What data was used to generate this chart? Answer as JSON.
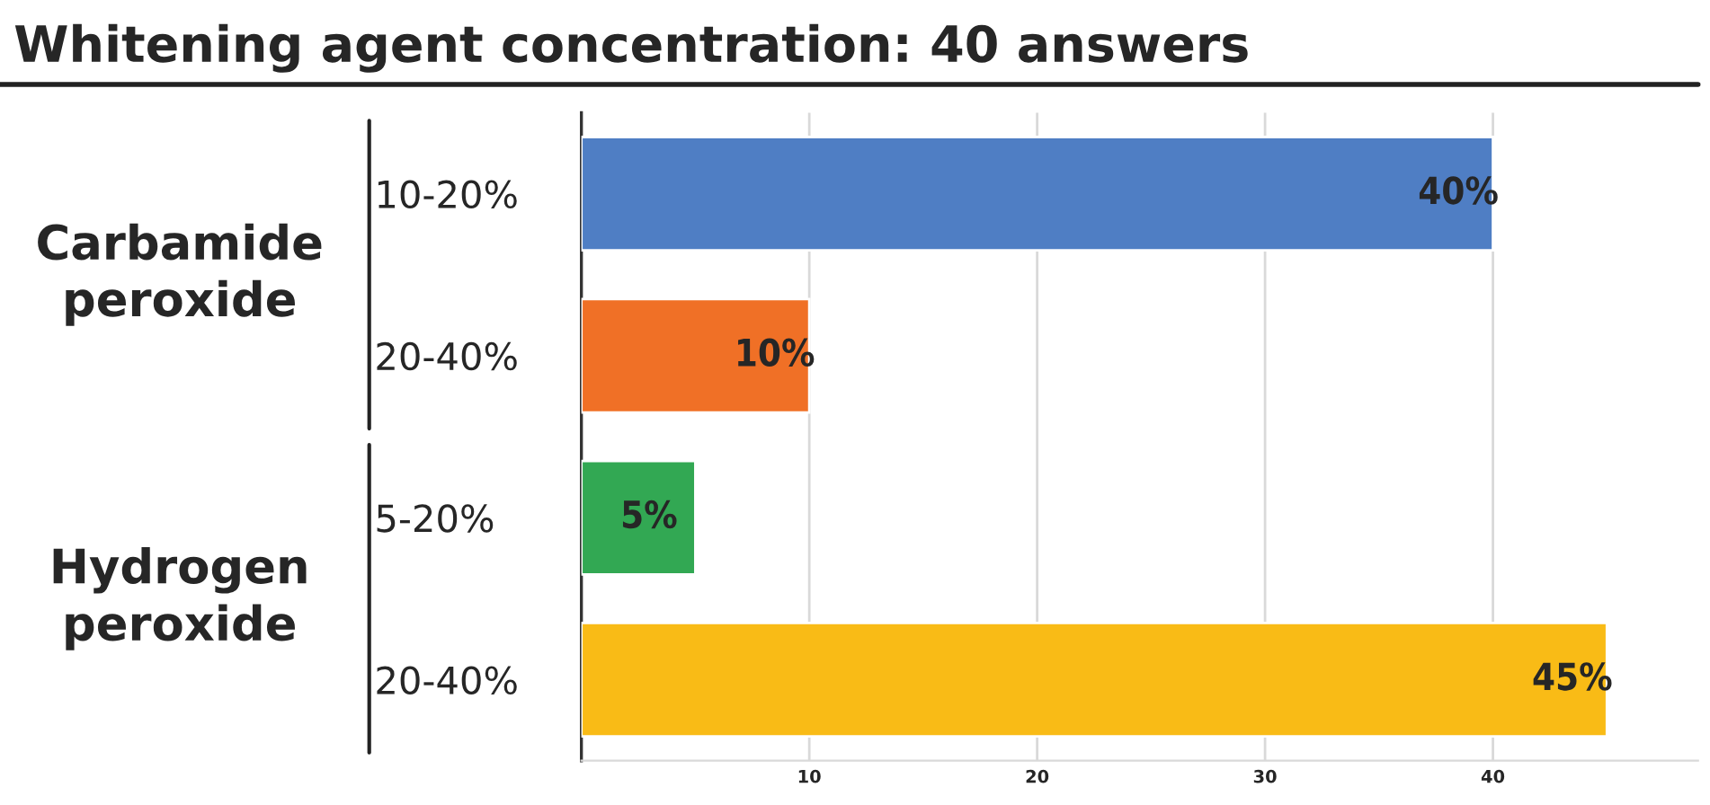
{
  "chart_data": {
    "type": "bar",
    "orientation": "horizontal",
    "title": "Whitening agent concentration: 40 answers",
    "categories": [
      "10-20%",
      "20-40%",
      "5-20%",
      "20-40%"
    ],
    "values": [
      40,
      10,
      5,
      45
    ],
    "colors": [
      "#4f7ec4",
      "#f07026",
      "#32a853",
      "#f9bb16"
    ],
    "value_labels": [
      "40%",
      "10%",
      "5%",
      "45%"
    ],
    "annotations": [
      "Carbamide peroxide",
      "Hydrogen peroxide"
    ],
    "xlim": [
      0,
      49
    ],
    "xticks": [
      10,
      20,
      30,
      40
    ],
    "grid": "x",
    "legend": false
  }
}
